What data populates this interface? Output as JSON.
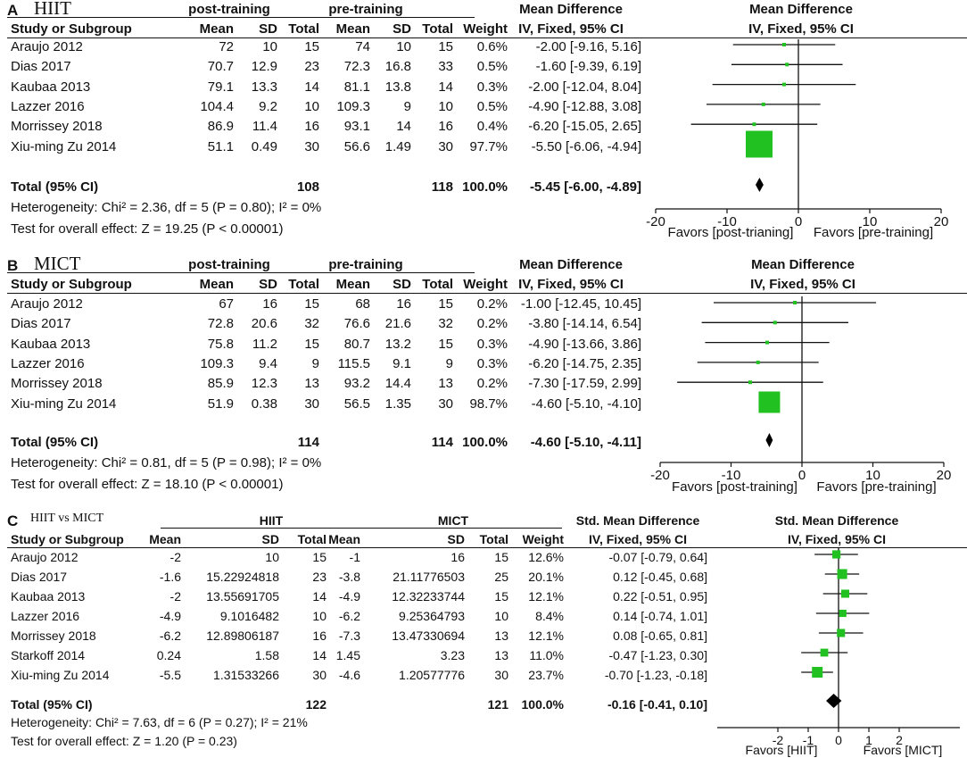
{
  "chart_data": [
    {
      "panel": "A",
      "type": "forest",
      "title": "HIIT",
      "group1": "post-training",
      "group2": "pre-training",
      "headers": {
        "study": "Study or Subgroup",
        "mean": "Mean",
        "sd": "SD",
        "total": "Total",
        "weight": "Weight",
        "md_title": "Mean Difference",
        "md_method": "IV, Fixed, 95% CI"
      },
      "studies": [
        {
          "name": "Araujo 2012",
          "m1": "72",
          "sd1": "10",
          "n1": "15",
          "m2": "74",
          "sd2": "10",
          "n2": "15",
          "weight": "0.6%",
          "ci": "-2.00 [-9.16, 5.16]",
          "est": -2.0,
          "lo": -9.16,
          "hi": 5.16
        },
        {
          "name": "Dias 2017",
          "m1": "70.7",
          "sd1": "12.9",
          "n1": "23",
          "m2": "72.3",
          "sd2": "16.8",
          "n2": "33",
          "weight": "0.5%",
          "ci": "-1.60 [-9.39, 6.19]",
          "est": -1.6,
          "lo": -9.39,
          "hi": 6.19
        },
        {
          "name": "Kaubaa 2013",
          "m1": "79.1",
          "sd1": "13.3",
          "n1": "14",
          "m2": "81.1",
          "sd2": "13.8",
          "n2": "14",
          "weight": "0.3%",
          "ci": "-2.00 [-12.04, 8.04]",
          "est": -2.0,
          "lo": -12.04,
          "hi": 8.04
        },
        {
          "name": "Lazzer 2016",
          "m1": "104.4",
          "sd1": "9.2",
          "n1": "10",
          "m2": "109.3",
          "sd2": "9",
          "n2": "10",
          "weight": "0.5%",
          "ci": "-4.90 [-12.88, 3.08]",
          "est": -4.9,
          "lo": -12.88,
          "hi": 3.08
        },
        {
          "name": "Morrissey 2018",
          "m1": "86.9",
          "sd1": "11.4",
          "n1": "16",
          "m2": "93.1",
          "sd2": "14",
          "n2": "16",
          "weight": "0.4%",
          "ci": "-6.20 [-15.05, 2.65]",
          "est": -6.2,
          "lo": -15.05,
          "hi": 2.65
        },
        {
          "name": "Xiu-ming Zu 2014",
          "m1": "51.1",
          "sd1": "0.49",
          "n1": "30",
          "m2": "56.6",
          "sd2": "1.49",
          "n2": "30",
          "weight": "97.7%",
          "ci": "-5.50 [-6.06, -4.94]",
          "est": -5.5,
          "lo": -6.06,
          "hi": -4.94
        }
      ],
      "total": {
        "label": "Total (95% CI)",
        "n1": "108",
        "n2": "118",
        "weight": "100.0%",
        "ci": "-5.45 [-6.00, -4.89]",
        "est": -5.45,
        "lo": -6.0,
        "hi": -4.89
      },
      "heterogeneity": "Heterogeneity: Chi² = 2.36, df = 5 (P = 0.80); I² = 0%",
      "overall": "Test for overall effect: Z = 19.25 (P < 0.00001)",
      "axis": {
        "min": -20,
        "max": 20,
        "ticks": [
          -20,
          -10,
          0,
          10,
          20
        ],
        "tick_labels": [
          "-20",
          "-10",
          "0",
          "10",
          "20"
        ]
      },
      "favors_left": "Favors [post-trianing]",
      "favors_right": "Favors [pre-training]"
    },
    {
      "panel": "B",
      "type": "forest",
      "title": "MICT",
      "group1": "post-training",
      "group2": "pre-training",
      "headers": {
        "study": "Study or Subgroup",
        "mean": "Mean",
        "sd": "SD",
        "total": "Total",
        "weight": "Weight",
        "md_title": "Mean Difference",
        "md_method": "IV, Fixed, 95% CI"
      },
      "studies": [
        {
          "name": "Araujo 2012",
          "m1": "67",
          "sd1": "16",
          "n1": "15",
          "m2": "68",
          "sd2": "16",
          "n2": "15",
          "weight": "0.2%",
          "ci": "-1.00 [-12.45, 10.45]",
          "est": -1.0,
          "lo": -12.45,
          "hi": 10.45
        },
        {
          "name": "Dias 2017",
          "m1": "72.8",
          "sd1": "20.6",
          "n1": "32",
          "m2": "76.6",
          "sd2": "21.6",
          "n2": "32",
          "weight": "0.2%",
          "ci": "-3.80 [-14.14, 6.54]",
          "est": -3.8,
          "lo": -14.14,
          "hi": 6.54
        },
        {
          "name": "Kaubaa 2013",
          "m1": "75.8",
          "sd1": "11.2",
          "n1": "15",
          "m2": "80.7",
          "sd2": "13.2",
          "n2": "15",
          "weight": "0.3%",
          "ci": "-4.90 [-13.66, 3.86]",
          "est": -4.9,
          "lo": -13.66,
          "hi": 3.86
        },
        {
          "name": "Lazzer 2016",
          "m1": "109.3",
          "sd1": "9.4",
          "n1": "9",
          "m2": "115.5",
          "sd2": "9.1",
          "n2": "9",
          "weight": "0.3%",
          "ci": "-6.20 [-14.75, 2.35]",
          "est": -6.2,
          "lo": -14.75,
          "hi": 2.35
        },
        {
          "name": "Morrissey 2018",
          "m1": "85.9",
          "sd1": "12.3",
          "n1": "13",
          "m2": "93.2",
          "sd2": "14.4",
          "n2": "13",
          "weight": "0.2%",
          "ci": "-7.30 [-17.59, 2.99]",
          "est": -7.3,
          "lo": -17.59,
          "hi": 2.99
        },
        {
          "name": "Xiu-ming Zu 2014",
          "m1": "51.9",
          "sd1": "0.38",
          "n1": "30",
          "m2": "56.5",
          "sd2": "1.35",
          "n2": "30",
          "weight": "98.7%",
          "ci": "-4.60 [-5.10, -4.10]",
          "est": -4.6,
          "lo": -5.1,
          "hi": -4.1
        }
      ],
      "total": {
        "label": "Total (95% CI)",
        "n1": "114",
        "n2": "114",
        "weight": "100.0%",
        "ci": "-4.60 [-5.10, -4.11]",
        "est": -4.6,
        "lo": -5.1,
        "hi": -4.11
      },
      "heterogeneity": "Heterogeneity: Chi² = 0.81, df = 5 (P = 0.98); I² = 0%",
      "overall": "Test for overall effect: Z = 18.10 (P < 0.00001)",
      "axis": {
        "min": -20,
        "max": 20,
        "ticks": [
          -20,
          -10,
          0,
          10,
          20
        ],
        "tick_labels": [
          "-20",
          "-10",
          "0",
          "10",
          "20"
        ]
      },
      "favors_left": "Favors [post-training]",
      "favors_right": "Favors [pre-training]"
    },
    {
      "panel": "C",
      "type": "forest",
      "title": "HIIT vs MICT",
      "group1": "HIIT",
      "group2": "MICT",
      "headers": {
        "study": "Study or Subgroup",
        "mean": "Mean",
        "sd": "SD",
        "total": "Total",
        "weight": "Weight",
        "md_title": "Std. Mean Difference",
        "md_method": "IV, Fixed, 95% CI"
      },
      "studies": [
        {
          "name": "Araujo 2012",
          "m1": "-2",
          "sd1": "10",
          "n1": "15",
          "m2": "-1",
          "sd2": "16",
          "n2": "15",
          "weight": "12.6%",
          "ci": "-0.07 [-0.79, 0.64]",
          "est": -0.07,
          "lo": -0.79,
          "hi": 0.64
        },
        {
          "name": "Dias 2017",
          "m1": "-1.6",
          "sd1": "15.22924818",
          "n1": "23",
          "m2": "-3.8",
          "sd2": "21.11776503",
          "n2": "25",
          "weight": "20.1%",
          "ci": "0.12 [-0.45, 0.68]",
          "est": 0.12,
          "lo": -0.45,
          "hi": 0.68
        },
        {
          "name": "Kaubaa 2013",
          "m1": "-2",
          "sd1": "13.55691705",
          "n1": "14",
          "m2": "-4.9",
          "sd2": "12.32233744",
          "n2": "15",
          "weight": "12.1%",
          "ci": "0.22 [-0.51, 0.95]",
          "est": 0.22,
          "lo": -0.51,
          "hi": 0.95
        },
        {
          "name": "Lazzer 2016",
          "m1": "-4.9",
          "sd1": "9.1016482",
          "n1": "10",
          "m2": "-6.2",
          "sd2": "9.25364793",
          "n2": "10",
          "weight": "8.4%",
          "ci": "0.14 [-0.74, 1.01]",
          "est": 0.14,
          "lo": -0.74,
          "hi": 1.01
        },
        {
          "name": "Morrissey 2018",
          "m1": "-6.2",
          "sd1": "12.89806187",
          "n1": "16",
          "m2": "-7.3",
          "sd2": "13.47330694",
          "n2": "13",
          "weight": "12.1%",
          "ci": "0.08 [-0.65, 0.81]",
          "est": 0.08,
          "lo": -0.65,
          "hi": 0.81
        },
        {
          "name": "Starkoff 2014",
          "m1": "0.24",
          "sd1": "1.58",
          "n1": "14",
          "m2": "1.45",
          "sd2": "3.23",
          "n2": "13",
          "weight": "11.0%",
          "ci": "-0.47 [-1.23, 0.30]",
          "est": -0.47,
          "lo": -1.23,
          "hi": 0.3
        },
        {
          "name": "Xiu-ming Zu 2014",
          "m1": "-5.5",
          "sd1": "1.31533266",
          "n1": "30",
          "m2": "-4.6",
          "sd2": "1.20577776",
          "n2": "30",
          "weight": "23.7%",
          "ci": "-0.70 [-1.23, -0.18]",
          "est": -0.7,
          "lo": -1.23,
          "hi": -0.18
        }
      ],
      "total": {
        "label": "Total (95% CI)",
        "n1": "122",
        "n2": "121",
        "weight": "100.0%",
        "ci": "-0.16 [-0.41, 0.10]",
        "est": -0.16,
        "lo": -0.41,
        "hi": 0.1
      },
      "heterogeneity": "Heterogeneity: Chi² = 7.63, df = 6 (P = 0.27); I² = 21%",
      "overall": "Test for overall effect: Z = 1.20 (P = 0.23)",
      "axis": {
        "min": -4,
        "max": 4,
        "ticks": [
          -2,
          -1,
          0,
          1,
          2
        ],
        "tick_labels": [
          "-2",
          "-1",
          "0",
          "1",
          "2"
        ]
      },
      "favors_left": "Favors [HIIT]",
      "favors_right": "Favors [MICT]"
    }
  ],
  "colors": {
    "square": "#22c122",
    "diamond": "#000000",
    "line": "#111111"
  }
}
